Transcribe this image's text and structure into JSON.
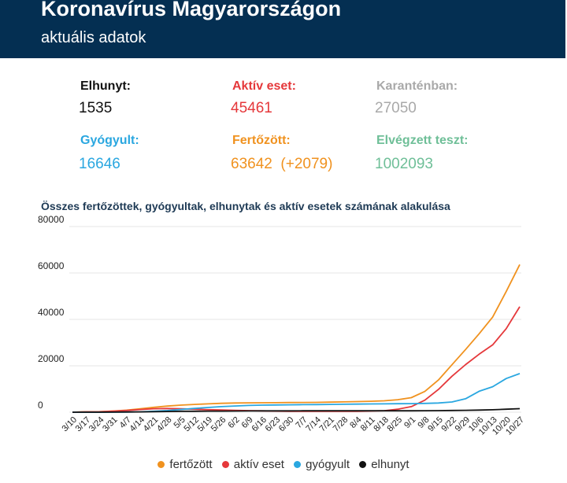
{
  "header": {
    "title": "Koronavírus Magyarországon",
    "subtitle": "aktuális adatok"
  },
  "stats": [
    {
      "label": "Elhunyt:",
      "value": "1535",
      "color": "#111111"
    },
    {
      "label": "Aktív eset:",
      "value": "45461",
      "color": "#e5383b"
    },
    {
      "label": "Karanténban:",
      "value": "27050",
      "color": "#a9a9a9"
    },
    {
      "label": "Gyógyult:",
      "value": "16646",
      "color": "#2aa7e0"
    },
    {
      "label": "Fertőzött:",
      "value": "63642  (+2079)",
      "color": "#f0921f"
    },
    {
      "label": "Elvégzett teszt:",
      "value": "1002093",
      "color": "#6fbf98"
    }
  ],
  "chart_data": {
    "type": "line",
    "title": "Összes fertőzöttek, gyógyultak, elhunytak és aktív esetek számának alakulása",
    "ylim": [
      0,
      80000
    ],
    "y_ticks": [
      "80000",
      "60000",
      "40000",
      "20000",
      "0"
    ],
    "grid": true,
    "legend_position": "bottom",
    "categories": [
      "3/10",
      "3/17",
      "3/24",
      "3/31",
      "4/7",
      "4/14",
      "4/21",
      "4/28",
      "5/5",
      "5/12",
      "5/19",
      "5/26",
      "6/2",
      "6/9",
      "6/16",
      "6/23",
      "6/30",
      "7/7",
      "7/14",
      "7/21",
      "7/28",
      "8/4",
      "8/11",
      "8/18",
      "8/25",
      "9/1",
      "9/8",
      "9/15",
      "9/22",
      "9/29",
      "10/6",
      "10/13",
      "10/20",
      "10/27"
    ],
    "series": [
      {
        "name": "fertőzött",
        "color": "#f0921f",
        "values": [
          12,
          187,
          226,
          492,
          895,
          1458,
          2098,
          2649,
          3035,
          3341,
          3598,
          3816,
          3954,
          4039,
          4077,
          4107,
          4155,
          4205,
          4247,
          4339,
          4456,
          4564,
          4721,
          4916,
          5400,
          6257,
          8963,
          13879,
          20450,
          27000,
          33800,
          41000,
          52000,
          63642
        ]
      },
      {
        "name": "aktív eset",
        "color": "#e5383b",
        "values": [
          12,
          178,
          213,
          433,
          750,
          1150,
          1500,
          1600,
          1450,
          1280,
          1100,
          950,
          800,
          680,
          560,
          480,
          420,
          390,
          370,
          380,
          400,
          420,
          500,
          650,
          1300,
          2400,
          5200,
          9800,
          15500,
          20500,
          25000,
          29000,
          36000,
          45461
        ]
      },
      {
        "name": "gyógyult",
        "color": "#2aa7e0",
        "values": [
          0,
          0,
          5,
          34,
          66,
          170,
          400,
          700,
          1180,
          1640,
          2020,
          2390,
          2690,
          2900,
          3040,
          3120,
          3200,
          3260,
          3300,
          3360,
          3430,
          3500,
          3570,
          3610,
          3650,
          3710,
          3800,
          3950,
          4400,
          5800,
          9000,
          11000,
          14500,
          16646
        ]
      },
      {
        "name": "elhunyt",
        "color": "#111111",
        "values": [
          0,
          1,
          10,
          32,
          85,
          142,
          213,
          300,
          390,
          421,
          462,
          486,
          524,
          549,
          568,
          582,
          589,
          594,
          597,
          599,
          601,
          607,
          611,
          615,
          618,
          625,
          644,
          682,
          755,
          826,
          907,
          1046,
          1278,
          1535
        ]
      }
    ]
  }
}
